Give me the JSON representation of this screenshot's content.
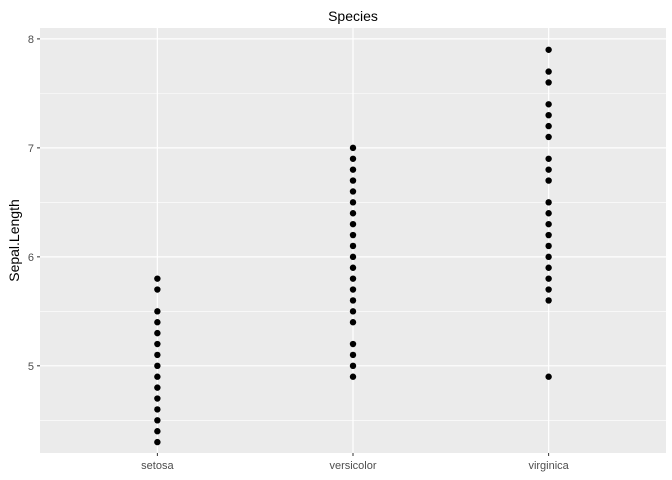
{
  "chart_data": {
    "type": "scatter",
    "title": "Species",
    "xlabel": "",
    "ylabel": "Sepal.Length",
    "categories": [
      "setosa",
      "versicolor",
      "virginica"
    ],
    "ylim": [
      4.2,
      8.1
    ],
    "y_ticks": [
      5,
      6,
      7,
      8
    ],
    "y_tick_labels": [
      "5",
      "6",
      "7",
      "8"
    ],
    "grid": true,
    "legend": "none",
    "colors": {
      "panel": "#ebebeb",
      "grid": "#ffffff",
      "point": "#000000"
    },
    "series": [
      {
        "category": "setosa",
        "values": [
          4.3,
          4.4,
          4.5,
          4.6,
          4.7,
          4.8,
          4.9,
          5.0,
          5.1,
          5.2,
          5.3,
          5.4,
          5.5,
          5.7,
          5.8
        ]
      },
      {
        "category": "versicolor",
        "values": [
          4.9,
          5.0,
          5.1,
          5.2,
          5.4,
          5.5,
          5.6,
          5.7,
          5.8,
          5.9,
          6.0,
          6.1,
          6.2,
          6.3,
          6.4,
          6.5,
          6.6,
          6.7,
          6.8,
          6.9,
          7.0
        ]
      },
      {
        "category": "virginica",
        "values": [
          4.9,
          5.6,
          5.7,
          5.8,
          5.9,
          6.0,
          6.1,
          6.2,
          6.3,
          6.4,
          6.5,
          6.7,
          6.8,
          6.9,
          7.1,
          7.2,
          7.3,
          7.4,
          7.6,
          7.7,
          7.9
        ]
      }
    ]
  }
}
